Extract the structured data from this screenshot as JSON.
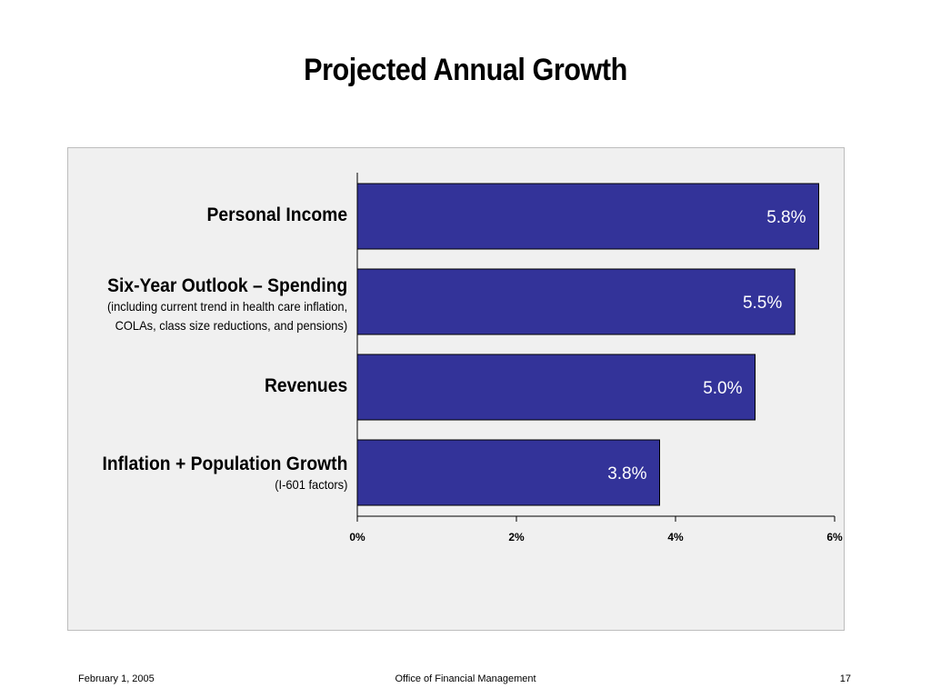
{
  "slide": {
    "title": "Projected Annual Growth",
    "footer_date": "February 1, 2005",
    "footer_org": "Office of Financial Management",
    "footer_page": "17"
  },
  "colors": {
    "bar_fill": "#333399",
    "bar_stroke": "#000000",
    "panel_bg": "#f0f0f0",
    "data_label": "#ffffff"
  },
  "chart_data": {
    "type": "bar",
    "orientation": "horizontal",
    "title": "",
    "xlabel": "",
    "ylabel": "",
    "xlim": [
      0,
      6
    ],
    "x_ticks": [
      "0%",
      "2%",
      "4%",
      "6%"
    ],
    "grid": false,
    "legend": "none",
    "categories": [
      {
        "label": "Personal Income",
        "sublabel": []
      },
      {
        "label": "Six-Year Outlook – Spending",
        "sublabel": [
          "(including current trend in health care inflation,",
          "COLAs, class size reductions, and pensions)"
        ]
      },
      {
        "label": "Revenues",
        "sublabel": []
      },
      {
        "label": "Inflation + Population Growth",
        "sublabel": [
          "(I-601 factors)"
        ]
      }
    ],
    "values": [
      5.8,
      5.5,
      5.0,
      3.8
    ],
    "data_labels": [
      "5.8%",
      "5.5%",
      "5.0%",
      "3.8%"
    ]
  }
}
